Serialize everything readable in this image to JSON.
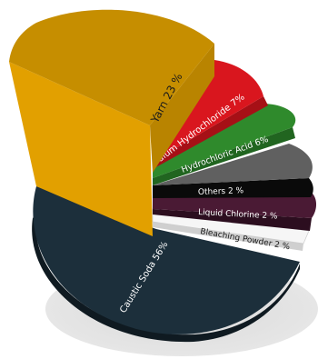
{
  "chart_data": {
    "type": "pie",
    "title": "",
    "slices": [
      {
        "label": "Caustic Soda 56%",
        "value": 56,
        "color": "#1c2f3b",
        "side": "#111d25",
        "text_color": "#ffffff"
      },
      {
        "label": "Yarn 23 %",
        "value": 23,
        "color": "#e2a000",
        "side": "#b98400",
        "text_color": "#1a1a1a"
      },
      {
        "label": "Sodium Hydrochloride 7%",
        "value": 7,
        "color": "#d9161e",
        "side": "#a61016",
        "text_color": "#ffffff"
      },
      {
        "label": "Hydrochloric Acid 6%",
        "value": 6,
        "color": "#2f8a2c",
        "side": "#216520",
        "text_color": "#ffffff"
      },
      {
        "label": "Others 2 %",
        "value": 2,
        "color": "#606060",
        "side": "#0a0a0a",
        "text_color": "#ffffff"
      },
      {
        "label": "Liquid Chlorine 2 %",
        "value": 2,
        "color": "#4a1a34",
        "side": "#2e0f20",
        "text_color": "#ffffff"
      },
      {
        "label": "Bleaching Powder 2 %",
        "value": 2,
        "color": "#f4f4f4",
        "side": "#d6d6d6",
        "text_color": "#1a1a1a"
      }
    ],
    "legend": "none",
    "grid": false
  }
}
